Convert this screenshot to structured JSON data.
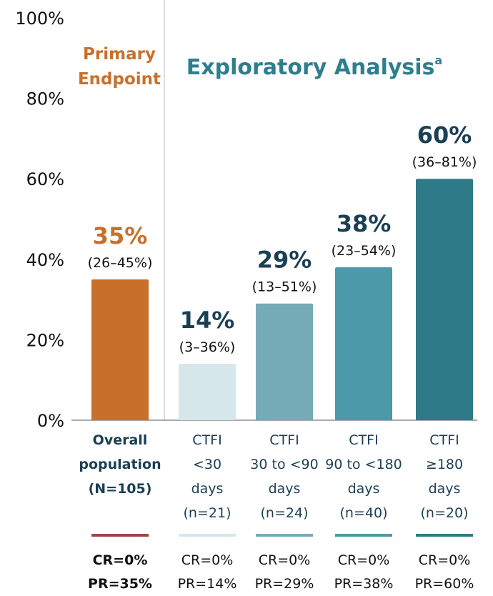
{
  "chart_data": {
    "type": "bar",
    "ylim": [
      0,
      100
    ],
    "yticks": [
      "0%",
      "20%",
      "40%",
      "60%",
      "80%",
      "100%"
    ],
    "yticks_values": [
      0,
      20,
      40,
      60,
      80,
      100
    ],
    "grid": false,
    "section_labels": {
      "primary": [
        "Primary",
        "Endpoint"
      ],
      "exploratory": "Exploratory Analysis",
      "exploratory_superscript": "a"
    },
    "categories": [
      {
        "label": [
          "Overall",
          "population",
          "(N=105)"
        ],
        "value": 35,
        "value_label": "35%",
        "ci": "(26–45%)",
        "color": "#c8702a",
        "underline_color": "#a04545",
        "cr": "CR=0%",
        "pr": "PR=35%",
        "bold": true,
        "label_color": "#c8702a"
      },
      {
        "label": [
          "CTFI",
          "<30",
          "days",
          "(n=21)"
        ],
        "value": 14,
        "value_label": "14%",
        "ci": "(3–36%)",
        "color": "#d6e7eb",
        "underline_color": "#d6e7eb",
        "cr": "CR=0%",
        "pr": "PR=14%",
        "bold": false,
        "label_color": "#1b3f55"
      },
      {
        "label": [
          "CTFI",
          "30 to <90",
          "days",
          "(n=24)"
        ],
        "value": 29,
        "value_label": "29%",
        "ci": "(13–51%)",
        "color": "#74abb7",
        "underline_color": "#74abb7",
        "cr": "CR=0%",
        "pr": "PR=29%",
        "bold": false,
        "label_color": "#1b3f55"
      },
      {
        "label": [
          "CTFI",
          "90 to <180",
          "days",
          "(n=40)"
        ],
        "value": 38,
        "value_label": "38%",
        "ci": "(23–54%)",
        "color": "#4b99a9",
        "underline_color": "#4b99a9",
        "cr": "CR=0%",
        "pr": "PR=38%",
        "bold": false,
        "label_color": "#1b3f55"
      },
      {
        "label": [
          "CTFI",
          "≥180",
          "days",
          "(n=20)"
        ],
        "value": 60,
        "value_label": "60%",
        "ci": "(36–81%)",
        "color": "#2e7a88",
        "underline_color": "#2e7a88",
        "cr": "CR=0%",
        "pr": "PR=60%",
        "bold": false,
        "label_color": "#1b3f55"
      }
    ],
    "colors": {
      "primary_title": "#c8702a",
      "exploratory_title": "#2e7f8e",
      "category_text": "#1b3f55"
    }
  }
}
